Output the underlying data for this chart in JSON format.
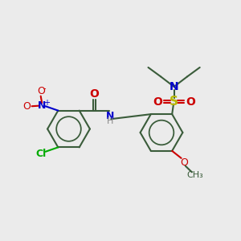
{
  "bg_color": "#ebebeb",
  "bond_color": "#3a5c3a",
  "bond_width": 1.5,
  "figsize": [
    3.0,
    3.0
  ],
  "dpi": 100,
  "colors": {
    "C": "#3a5c3a",
    "N": "#0000cc",
    "O": "#cc0000",
    "S": "#b8b800",
    "Cl": "#00aa00",
    "H": "#888888"
  },
  "xlim": [
    0,
    10
  ],
  "ylim": [
    0,
    10
  ]
}
